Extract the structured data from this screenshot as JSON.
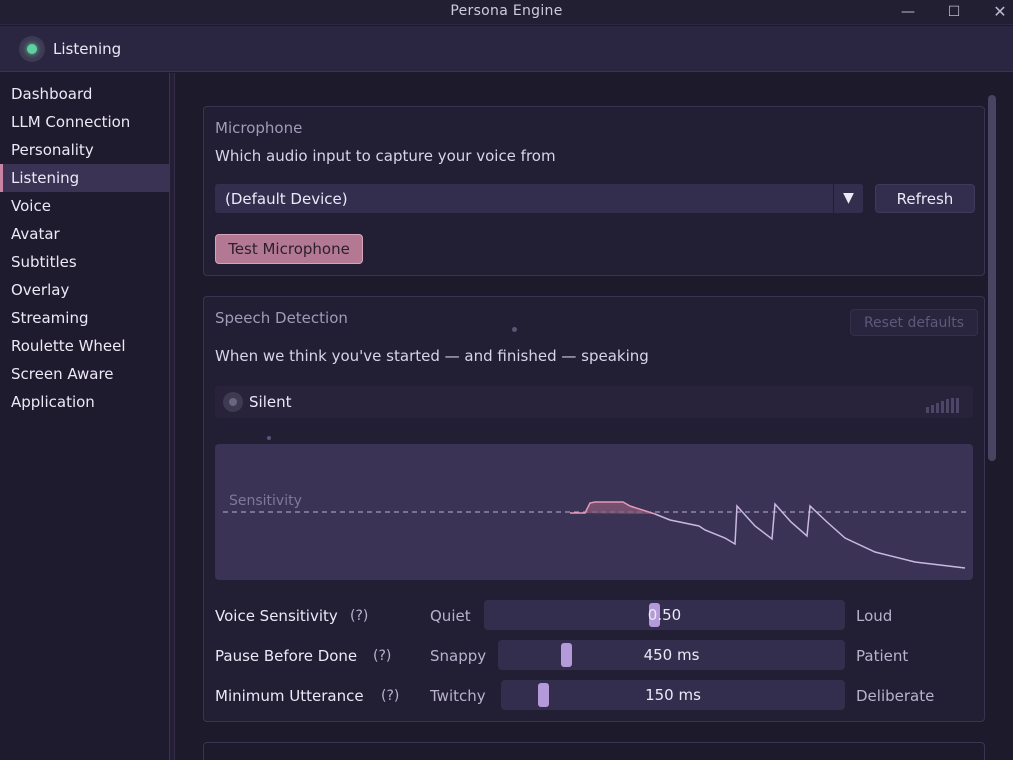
{
  "window": {
    "title": "Persona Engine"
  },
  "status": {
    "label": "Listening"
  },
  "sidebar": {
    "items": [
      {
        "label": "Dashboard"
      },
      {
        "label": "LLM Connection"
      },
      {
        "label": "Personality"
      },
      {
        "label": "Listening",
        "active": true
      },
      {
        "label": "Voice"
      },
      {
        "label": "Avatar"
      },
      {
        "label": "Subtitles"
      },
      {
        "label": "Overlay"
      },
      {
        "label": "Streaming"
      },
      {
        "label": "Roulette Wheel"
      },
      {
        "label": "Screen Aware"
      },
      {
        "label": "Application"
      }
    ]
  },
  "microphone": {
    "title": "Microphone",
    "description": "Which audio input to capture your voice from",
    "device": "(Default Device)",
    "refresh_label": "Refresh",
    "test_label": "Test Microphone"
  },
  "speech": {
    "title": "Speech Detection",
    "reset_label": "Reset defaults",
    "description": "When we think you've started — and finished — speaking",
    "state": "Silent",
    "graph_label": "Sensitivity",
    "sliders": [
      {
        "label": "Voice Sensitivity",
        "help": "(?)",
        "left": "Quiet",
        "right": "Loud",
        "value": "0.50",
        "fraction": 0.5
      },
      {
        "label": "Pause Before Done",
        "help": "(?)",
        "left": "Snappy",
        "right": "Patient",
        "value": "450 ms",
        "fraction": 0.18
      },
      {
        "label": "Minimum Utterance",
        "help": "(?)",
        "left": "Twitchy",
        "right": "Deliberate",
        "value": "150 ms",
        "fraction": 0.11
      }
    ]
  },
  "colors": {
    "accent": "#c984a4",
    "thumb": "#b49ad8",
    "listening": "#5fd1a1"
  }
}
